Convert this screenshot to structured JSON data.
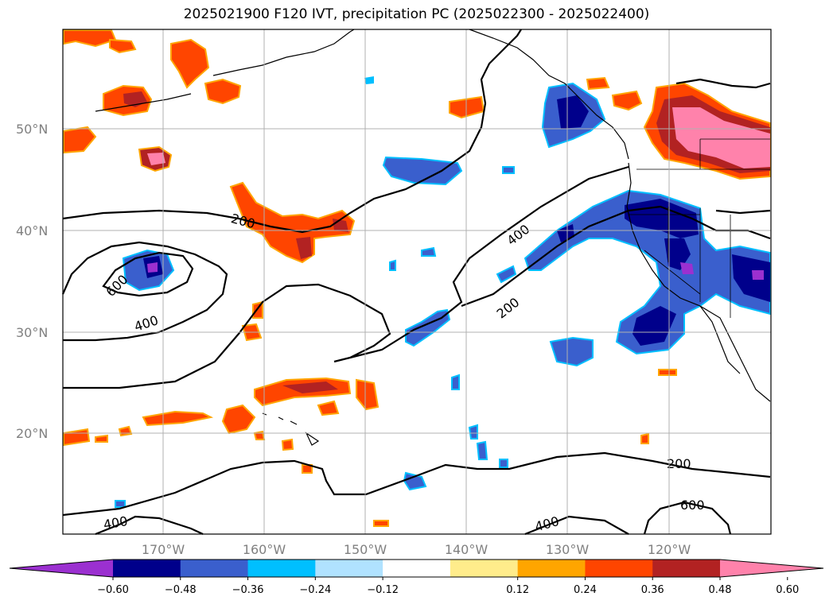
{
  "title": "2025021900 F120 IVT, precipitation PC (2025022300 - 2025022400)",
  "lat_labels": [
    "50°N",
    "40°N",
    "30°N",
    "20°N"
  ],
  "lon_labels": [
    "170°W",
    "160°W",
    "150°W",
    "140°W",
    "130°W",
    "120°W"
  ],
  "colorbar": {
    "ticks": [
      "−0.60",
      "−0.48",
      "−0.36",
      "−0.24",
      "−0.12",
      "0.12",
      "0.24",
      "0.36",
      "0.48",
      "0.60"
    ],
    "colors": [
      "#9b30d0",
      "#00008b",
      "#3a5fcd",
      "#00bfff",
      "#b0e2ff",
      "#ffffff",
      "#ffec8b",
      "#ffa500",
      "#ff4500",
      "#b22222",
      "#ff82ab"
    ]
  },
  "ivt_contour_labels": [
    "200",
    "400",
    "600",
    "400",
    "200",
    "200",
    "600",
    "400",
    "400"
  ],
  "colors": {
    "land_coast": "#000000",
    "grid": "#b0b0b0"
  }
}
